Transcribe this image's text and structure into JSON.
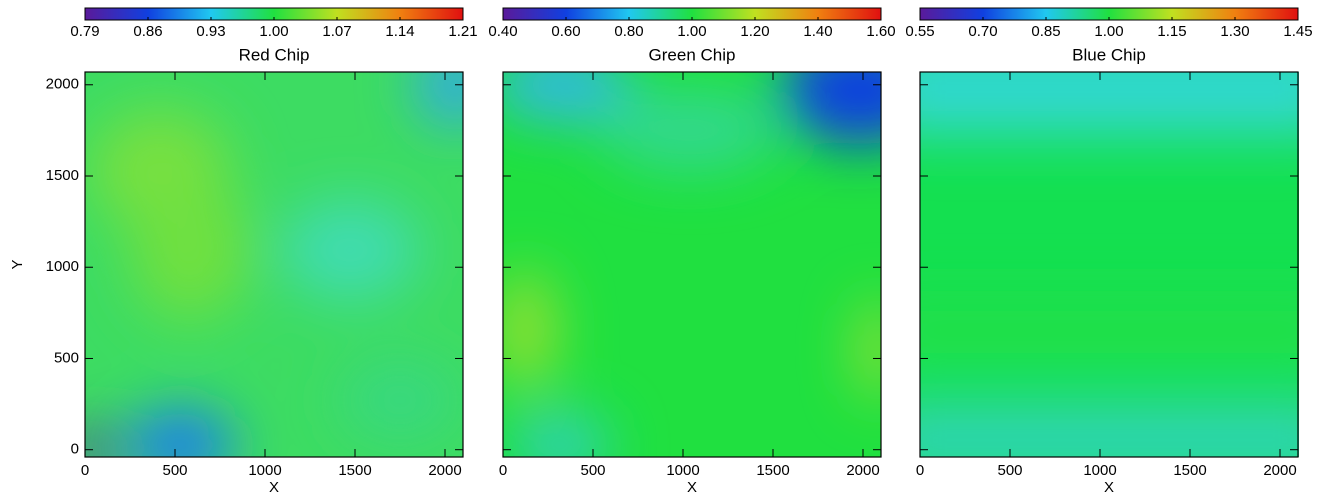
{
  "chart_data": [
    {
      "type": "heatmap",
      "title": "Red Chip",
      "xlabel": "X",
      "ylabel": "Y",
      "xlim": [
        0,
        2100
      ],
      "ylim": [
        -40,
        2070
      ],
      "xticks": [
        0,
        500,
        1000,
        1500,
        2000
      ],
      "yticks": [
        0,
        500,
        1000,
        1500,
        2000
      ],
      "ytick_labels": true,
      "colorbar": {
        "lim": [
          0.79,
          1.21
        ],
        "ticks": [
          0.79,
          0.86,
          {
            "value": 0.93,
            "label": "0.93"
          },
          {
            "value": 1.0,
            "label": "1.00"
          },
          1.07,
          1.14,
          1.21
        ],
        "colormap": [
          "#5a1a9a",
          "#1040e0",
          "#20c8f0",
          "#20e040",
          "#c0e020",
          "#f08010",
          "#e01010"
        ]
      }
    },
    {
      "type": "heatmap",
      "title": "Green Chip",
      "xlabel": "X",
      "xlim": [
        0,
        2100
      ],
      "ylim": [
        -40,
        2070
      ],
      "xticks": [
        0,
        500,
        1000,
        1500,
        2000
      ],
      "yticks": [
        0,
        500,
        1000,
        1500,
        2000
      ],
      "ytick_labels": false,
      "colorbar": {
        "lim": [
          0.4,
          1.6
        ],
        "ticks": [
          {
            "value": 0.4,
            "label": "0.40"
          },
          {
            "value": 0.6,
            "label": "0.60"
          },
          {
            "value": 0.8,
            "label": "0.80"
          },
          {
            "value": 1.0,
            "label": "1.00"
          },
          {
            "value": 1.2,
            "label": "1.20"
          },
          {
            "value": 1.4,
            "label": "1.40"
          },
          {
            "value": 1.6,
            "label": "1.60"
          }
        ],
        "colormap": [
          "#5a1a9a",
          "#1040e0",
          "#20c8f0",
          "#20e040",
          "#c0e020",
          "#f08010",
          "#e01010"
        ]
      }
    },
    {
      "type": "heatmap",
      "title": "Blue Chip",
      "xlabel": "X",
      "xlim": [
        0,
        2100
      ],
      "ylim": [
        -40,
        2070
      ],
      "xticks": [
        0,
        500,
        1000,
        1500,
        2000
      ],
      "yticks": [
        0,
        500,
        1000,
        1500,
        2000
      ],
      "ytick_labels": false,
      "colorbar": {
        "lim": [
          0.55,
          1.45
        ],
        "ticks": [
          0.55,
          {
            "value": 0.7,
            "label": "0.70"
          },
          0.85,
          {
            "value": 1.0,
            "label": "1.00"
          },
          1.15,
          {
            "value": 1.3,
            "label": "1.30"
          },
          1.45
        ],
        "colormap": [
          "#5a1a9a",
          "#1040e0",
          "#20c8f0",
          "#20e040",
          "#c0e020",
          "#f08010",
          "#e01010"
        ]
      }
    }
  ]
}
